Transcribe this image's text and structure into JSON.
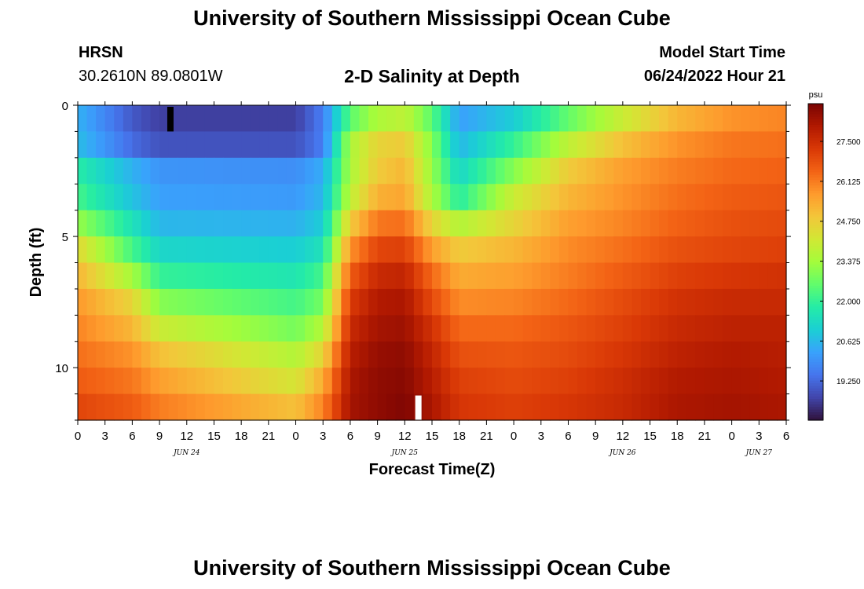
{
  "header": {
    "title": "University of Southern Mississippi Ocean Cube",
    "station": "HRSN",
    "coords": "30.2610N  89.0801W",
    "subtitle": "2-D Salinity at Depth",
    "model_start_label": "Model Start Time",
    "model_start_value": "06/24/2022 Hour 21"
  },
  "footer": {
    "title": "University of Southern Mississippi Ocean Cube"
  },
  "chart_data": {
    "type": "heatmap",
    "title": "2-D Salinity at Depth",
    "xlabel": "Forecast Time(Z)",
    "ylabel": "Depth (ft)",
    "x_tick_labels": [
      "0",
      "3",
      "6",
      "9",
      "12",
      "15",
      "18",
      "21",
      "0",
      "3",
      "6",
      "9",
      "12",
      "15",
      "18",
      "21",
      "0",
      "3",
      "6",
      "9",
      "12",
      "15",
      "18",
      "21",
      "0",
      "3",
      "6"
    ],
    "date_labels": [
      {
        "label": "JUN 24",
        "hour_index": 12
      },
      {
        "label": "JUN 25",
        "hour_index": 36
      },
      {
        "label": "JUN 26",
        "hour_index": 60
      },
      {
        "label": "JUN 27",
        "hour_index": 75
      }
    ],
    "x_range_hours": [
      0,
      78
    ],
    "y_tick_labels": [
      "0",
      "5",
      "10"
    ],
    "y_range_ft": [
      0,
      12
    ],
    "depth_rows": 12,
    "colorbar": {
      "unit": "psu",
      "min": 17.9,
      "max": 28.8,
      "tick_labels": [
        "27.500",
        "26.125",
        "24.750",
        "23.375",
        "22.000",
        "20.625",
        "19.250"
      ],
      "tick_values": [
        27.5,
        26.125,
        24.75,
        23.375,
        22.0,
        20.625,
        19.25
      ],
      "palette": [
        "#30123b",
        "#4145ab",
        "#4675ed",
        "#39a2fc",
        "#1bcfd4",
        "#24eca6",
        "#61fc6c",
        "#a4fc3b",
        "#d1e834",
        "#f3c63a",
        "#fe9b2d",
        "#f36315",
        "#d93806",
        "#b11901",
        "#7a0403"
      ]
    },
    "salinity_model": {
      "description": "Approximate salinity (psu) by depth row (0 = surface) at control times (hours from 0Z Jun 24)",
      "hours": [
        0,
        6,
        9,
        24,
        27,
        30,
        33,
        36,
        39,
        42,
        48,
        54,
        60,
        66,
        72,
        78
      ],
      "rows": [
        [
          20.5,
          19.0,
          18.6,
          18.6,
          19.6,
          22.5,
          23.5,
          23.8,
          22.5,
          20.2,
          21.0,
          22.6,
          24.0,
          25.2,
          25.8,
          26.0
        ],
        [
          20.7,
          19.3,
          18.9,
          18.9,
          19.6,
          23.5,
          24.6,
          24.8,
          23.0,
          20.6,
          22.0,
          23.8,
          25.0,
          25.8,
          26.2,
          26.3
        ],
        [
          21.8,
          20.5,
          20.0,
          19.9,
          20.4,
          23.5,
          24.8,
          25.2,
          23.2,
          21.2,
          23.0,
          24.8,
          25.6,
          26.1,
          26.4,
          26.5
        ],
        [
          22.2,
          20.8,
          20.2,
          20.1,
          20.6,
          23.8,
          25.3,
          25.5,
          23.5,
          21.8,
          24.0,
          25.2,
          25.8,
          26.3,
          26.6,
          26.7
        ],
        [
          23.2,
          21.5,
          20.6,
          20.5,
          21.0,
          24.8,
          26.2,
          26.3,
          24.6,
          23.6,
          24.6,
          25.6,
          26.0,
          26.5,
          26.8,
          26.9
        ],
        [
          24.5,
          22.2,
          21.2,
          21.0,
          21.5,
          25.8,
          27.0,
          27.1,
          25.6,
          24.8,
          25.2,
          25.9,
          26.3,
          26.8,
          27.0,
          27.1
        ],
        [
          25.2,
          23.4,
          22.0,
          21.6,
          22.2,
          26.6,
          27.6,
          27.7,
          26.4,
          25.4,
          25.6,
          26.1,
          26.6,
          27.1,
          27.3,
          27.4
        ],
        [
          25.7,
          24.6,
          23.0,
          22.2,
          22.8,
          27.2,
          28.0,
          28.1,
          26.9,
          25.9,
          26.0,
          26.4,
          26.9,
          27.4,
          27.6,
          27.6
        ],
        [
          26.0,
          25.2,
          24.0,
          22.8,
          23.6,
          27.6,
          28.2,
          28.3,
          27.4,
          26.4,
          26.4,
          26.7,
          27.1,
          27.6,
          27.8,
          27.8
        ],
        [
          26.3,
          25.8,
          25.0,
          23.6,
          24.6,
          27.9,
          28.4,
          28.5,
          27.7,
          26.8,
          26.7,
          26.9,
          27.3,
          27.8,
          28.0,
          27.9
        ],
        [
          26.6,
          26.2,
          25.6,
          24.2,
          25.4,
          28.1,
          28.5,
          28.6,
          27.9,
          27.1,
          26.9,
          27.1,
          27.5,
          28.0,
          28.1,
          28.0
        ],
        [
          27.0,
          26.6,
          26.1,
          25.0,
          26.0,
          28.2,
          28.5,
          28.7,
          28.1,
          27.3,
          27.1,
          27.3,
          27.6,
          28.1,
          28.2,
          28.1
        ],
        [
          27.8,
          27.3,
          26.8,
          26.2,
          26.8,
          28.3,
          28.6,
          28.8,
          28.3,
          27.6,
          27.5,
          27.6,
          27.8,
          28.2,
          28.3,
          28.2
        ]
      ]
    },
    "markers": [
      {
        "color": "#000000",
        "hour": 10.2,
        "row": 0
      },
      {
        "color": "#ffffff",
        "hour": 37.5,
        "row": 11
      }
    ]
  }
}
